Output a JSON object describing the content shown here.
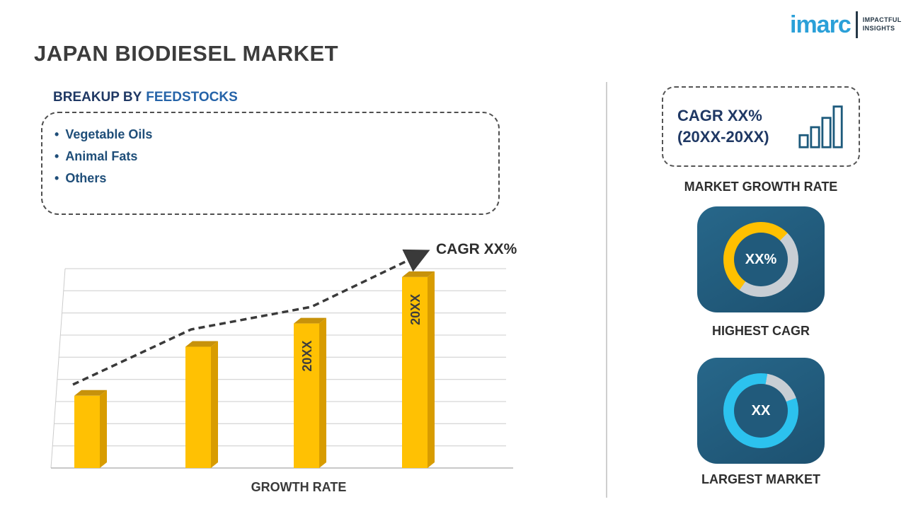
{
  "page": {
    "title": "JAPAN BIODIESEL MARKET"
  },
  "logo": {
    "name": "imarc",
    "tagline_line1": "IMPACTFUL",
    "tagline_line2": "INSIGHTS"
  },
  "breakup": {
    "heading_prefix": "BREAKUP BY",
    "heading_highlight": "FEEDSTOCKS",
    "items": [
      {
        "label": "Vegetable Oils"
      },
      {
        "label": "Animal Fats"
      },
      {
        "label": "Others"
      }
    ]
  },
  "chart_data": {
    "type": "bar",
    "title": "",
    "xlabel": "GROWTH RATE",
    "ylabel": "",
    "categories": [
      "",
      "",
      "20XX",
      "20XX"
    ],
    "values": [
      28,
      47,
      56,
      74
    ],
    "bar_labels": [
      "",
      "",
      "20XX",
      "20XX"
    ],
    "ylim": [
      0,
      80
    ],
    "grid": true,
    "legend": "none",
    "annotations": [
      "CAGR XX%"
    ],
    "trend": "dashed ascending arrow pointing to CAGR XX%",
    "bar_color": "#FFC103"
  },
  "sidebar": {
    "growth_rate_box": {
      "line1": "CAGR XX%",
      "line2": "(20XX-20XX)"
    },
    "market_growth_rate_label": "MARKET GROWTH RATE",
    "highest_cagr": {
      "value": "XX%",
      "label": "HIGHEST CAGR"
    },
    "largest_market": {
      "value": "XX",
      "label": "LARGEST MARKET"
    }
  },
  "colors": {
    "bar_yellow": "#FFC103",
    "bar_side": "#D89C00",
    "donut_yellow": "#FFC000",
    "donut_cyan": "#2CC2EE",
    "donut_gray": "#C8CED4",
    "tile_blue": "#215A7B",
    "heading_navy": "#1F3864",
    "heading_blue": "#2563A8",
    "bullet_blue": "#1F4E79",
    "logo_blue": "#2BA0D8",
    "trend_line": "#3A3A3A"
  }
}
